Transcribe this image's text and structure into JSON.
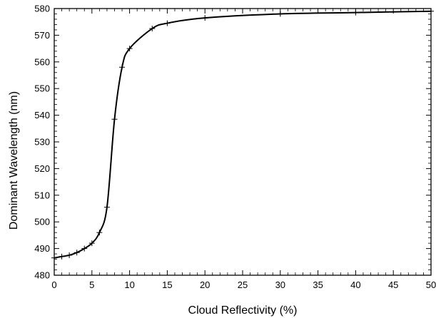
{
  "chart_data": {
    "type": "line",
    "title": "",
    "xlabel": "Cloud Reflectivity (%)",
    "ylabel": "Dominant Wavelength (nm)",
    "xlim": [
      0,
      50
    ],
    "ylim": [
      480,
      580
    ],
    "xticks": [
      0,
      5,
      10,
      15,
      20,
      25,
      30,
      35,
      40,
      45,
      50
    ],
    "yticks": [
      480,
      490,
      500,
      510,
      520,
      530,
      540,
      550,
      560,
      570,
      580
    ],
    "xtick_labels": [
      "0",
      "5",
      "10",
      "15",
      "20",
      "25",
      "30",
      "35",
      "40",
      "45",
      "50"
    ],
    "ytick_labels": [
      "480",
      "490",
      "500",
      "510",
      "520",
      "530",
      "540",
      "550",
      "560",
      "570",
      "580"
    ],
    "grid": false,
    "legend": "none",
    "marker": "plus",
    "series": [
      {
        "x": [
          0,
          1,
          2,
          3,
          4,
          5,
          6,
          7,
          8,
          9,
          10,
          13,
          15,
          20,
          30,
          40,
          50
        ],
        "y": [
          486.5,
          487,
          487.5,
          488.5,
          490,
          492,
          496,
          505.5,
          538.5,
          558,
          565,
          572.5,
          574.5,
          576.5,
          578,
          578.5,
          579
        ]
      }
    ],
    "colors": {
      "line": "#000000",
      "axes": "#000000",
      "background": "#ffffff"
    }
  }
}
